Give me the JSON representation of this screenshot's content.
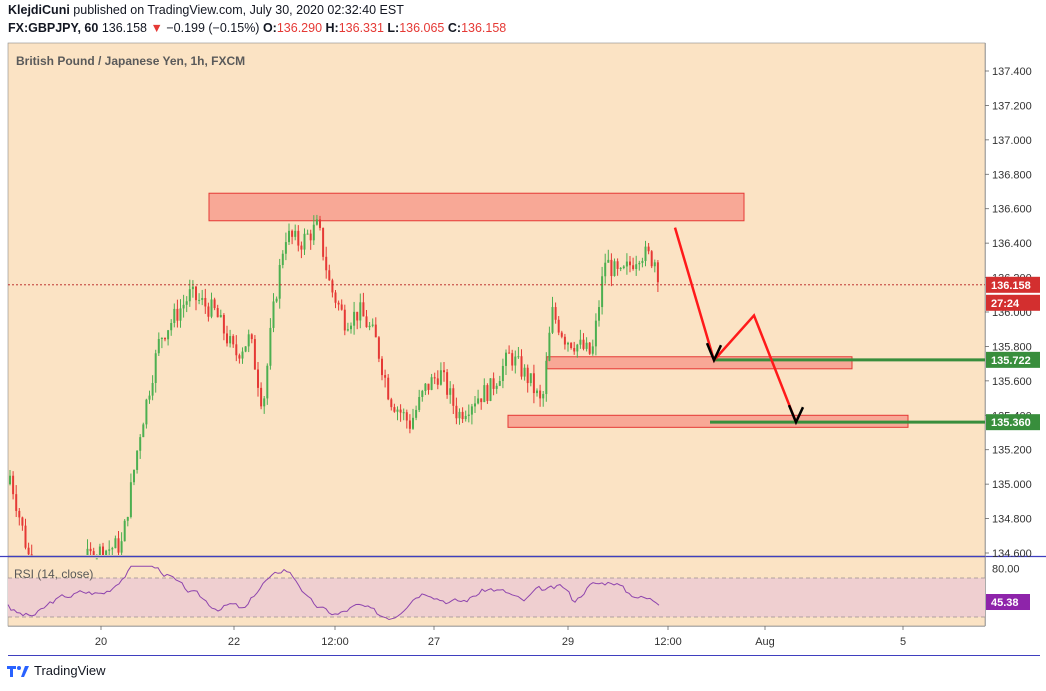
{
  "header": {
    "author": "KlejdiCuni",
    "published_text": "published on TradingView.com, July 30, 2020 02:32:40 EST",
    "symbol": "FX:GBPJPY, 60",
    "last": "136.158",
    "change": "−0.199 (−0.15%)",
    "o_label": "O:",
    "o": "136.290",
    "h_label": "H:",
    "h": "136.331",
    "l_label": "L:",
    "l": "136.065",
    "c_label": "C:",
    "c": "136.158"
  },
  "legend": "British Pound / Japanese Yen, 1h, FXCM",
  "rsi_label": "RSI (14, close)",
  "footer": {
    "brand": "TradingView"
  },
  "colors": {
    "background": "#fbe3c4",
    "up": "#4caf50",
    "down": "#e53935",
    "zone_fill": "#f7a191",
    "zone_border": "#e53935",
    "level_green": "#388e3c",
    "arrow_red": "#ff1a1a",
    "rsi_band": "#efcfd0",
    "rsi_line": "#8e44ad"
  },
  "chart_data": {
    "type": "candlestick",
    "title": "British Pound / Japanese Yen, 1h, FXCM",
    "symbol": "FX:GBPJPY",
    "timeframe": "60",
    "y_ticks": [
      "137.400",
      "137.200",
      "137.000",
      "136.800",
      "136.600",
      "136.400",
      "136.200",
      "136.000",
      "135.800",
      "135.600",
      "135.400",
      "135.200",
      "135.000",
      "134.800",
      "134.600"
    ],
    "ylim": [
      134.6,
      137.4
    ],
    "x_ticks": [
      "20",
      "22",
      "12:00",
      "27",
      "29",
      "12:00",
      "Aug",
      "5"
    ],
    "current_price": 136.158,
    "current_price_label": "136.158",
    "countdown": "27:24",
    "levels": [
      {
        "value": 135.722,
        "label": "135.722"
      },
      {
        "value": 135.36,
        "label": "135.360"
      }
    ],
    "zones": [
      {
        "name": "resistance",
        "top": 136.69,
        "bottom": 136.53
      },
      {
        "name": "support-1",
        "top": 135.74,
        "bottom": 135.67
      },
      {
        "name": "support-2",
        "top": 135.4,
        "bottom": 135.33
      }
    ],
    "rsi": {
      "period": 14,
      "source": "close",
      "last": "45.38",
      "upper_band": 70,
      "lower_band": 30,
      "tick": "80.00"
    }
  }
}
